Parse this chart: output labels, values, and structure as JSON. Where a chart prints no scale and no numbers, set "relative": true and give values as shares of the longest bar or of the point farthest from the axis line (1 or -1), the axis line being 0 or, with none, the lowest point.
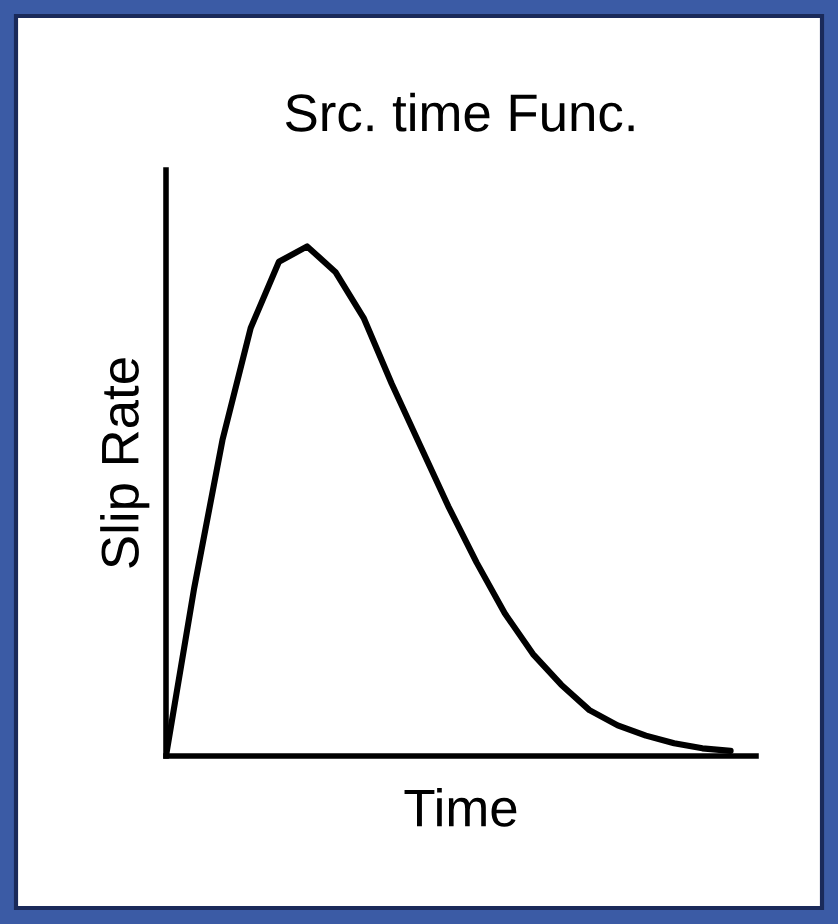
{
  "chart_data": {
    "type": "line",
    "title": "Src. time Func.",
    "xlabel": "Time",
    "ylabel": "Slip Rate",
    "relative": true,
    "color": "#000000",
    "marker": "none",
    "line_style": "solid",
    "grid": false,
    "legend": false,
    "categories": [
      null,
      null,
      null,
      null,
      null,
      null,
      null,
      null,
      null,
      null,
      null,
      null,
      null,
      null,
      null,
      null,
      null,
      null,
      null,
      null,
      null
    ],
    "values": [
      0,
      0.33,
      0.62,
      0.84,
      0.97,
      1.0,
      0.95,
      0.86,
      0.73,
      0.61,
      0.49,
      0.38,
      0.28,
      0.2,
      0.14,
      0.09,
      0.06,
      0.04,
      0.025,
      0.015,
      0.01
    ]
  }
}
